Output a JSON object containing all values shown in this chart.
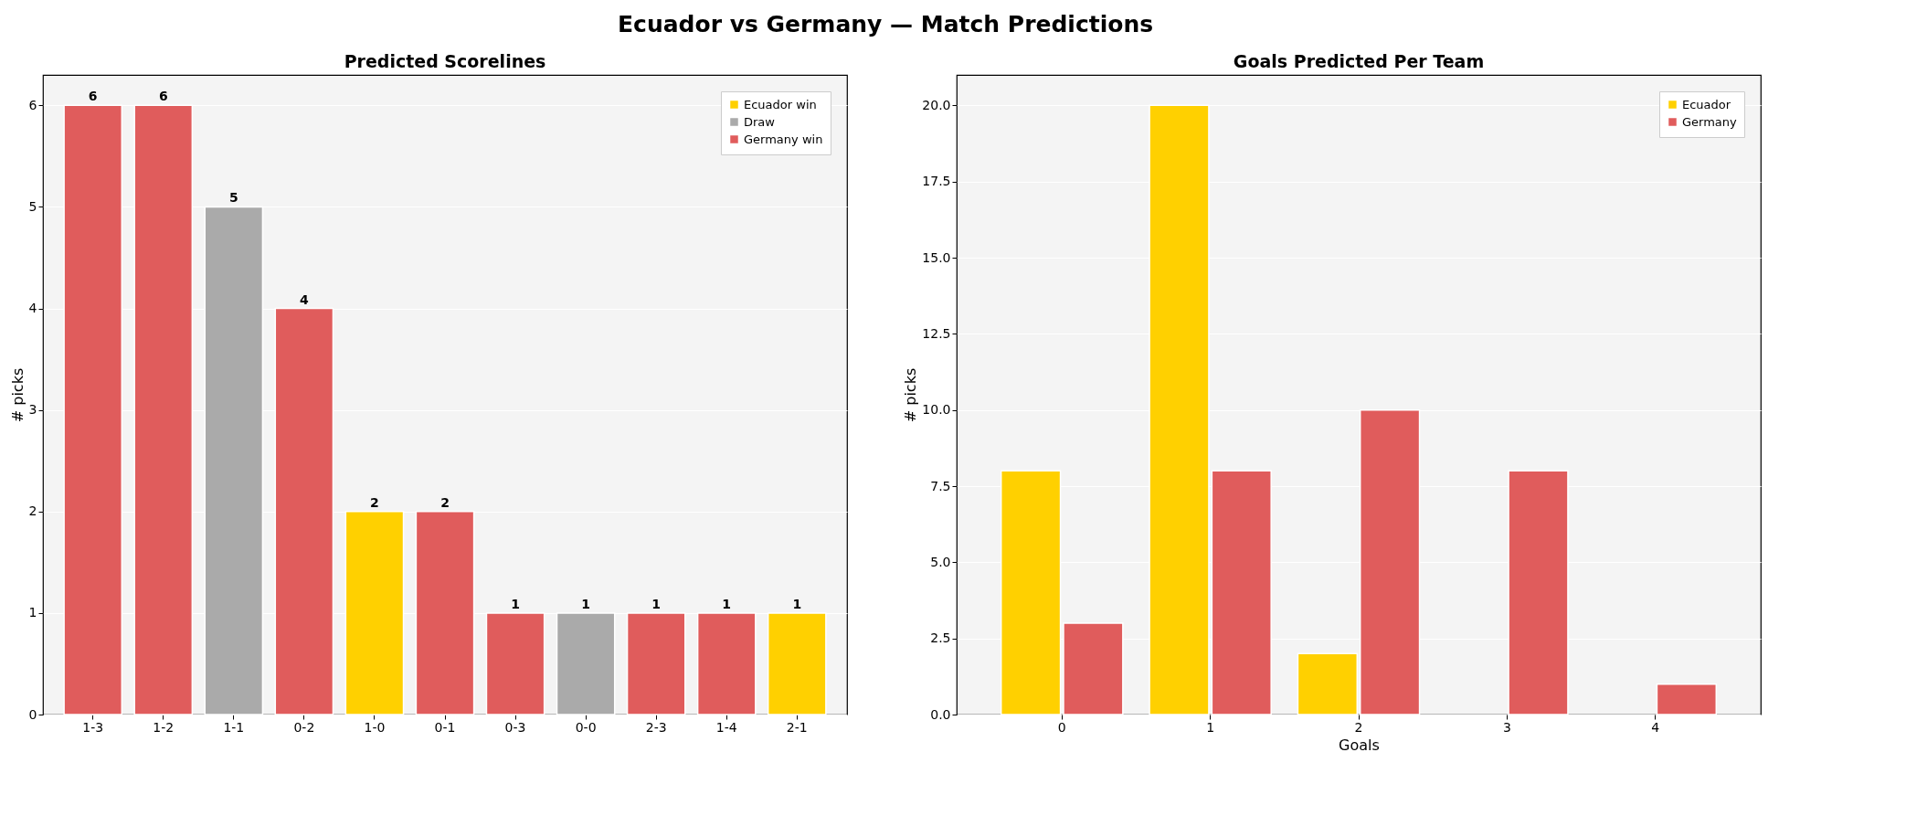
{
  "chart_data": [
    {
      "type": "bar",
      "title": "Predicted Scorelines",
      "annotations": [
        "Ecuador vs Germany  —  Match Predictions"
      ],
      "ylabel": "# picks",
      "categories": [
        "1-3",
        "1-2",
        "1-1",
        "0-2",
        "1-0",
        "0-1",
        "0-3",
        "0-0",
        "2-3",
        "1-4",
        "2-1"
      ],
      "stacked": true,
      "data_labels": true,
      "grid": "y",
      "legend": "top right",
      "ylim": [
        0,
        6.3
      ],
      "yticks": [
        0,
        1,
        2,
        3,
        4,
        5,
        6
      ],
      "series": [
        {
          "name": "Ecuador win",
          "color": "#ffd000",
          "values": [
            null,
            null,
            null,
            null,
            2,
            null,
            null,
            null,
            null,
            null,
            1
          ]
        },
        {
          "name": "Draw",
          "color": "#aaaaaa",
          "values": [
            null,
            null,
            5,
            null,
            null,
            null,
            null,
            1,
            null,
            null,
            null
          ]
        },
        {
          "name": "Germany win",
          "color": "#e05c5c",
          "values": [
            6,
            6,
            null,
            4,
            null,
            2,
            1,
            null,
            1,
            1,
            null
          ]
        }
      ]
    },
    {
      "type": "bar",
      "title": "Goals Predicted Per Team",
      "xlabel": "Goals",
      "ylabel": "# picks",
      "categories": [
        "0",
        "1",
        "2",
        "3",
        "4"
      ],
      "grid": "y",
      "legend": "top right",
      "ylim": [
        0,
        21
      ],
      "yticks": [
        {
          "value": 0,
          "label": "0.0"
        },
        {
          "value": 2.5,
          "label": "2.5"
        },
        {
          "value": 5,
          "label": "5.0"
        },
        {
          "value": 7.5,
          "label": "7.5"
        },
        {
          "value": 10,
          "label": "10.0"
        },
        {
          "value": 12.5,
          "label": "12.5"
        },
        {
          "value": 15,
          "label": "15.0"
        },
        {
          "value": 17.5,
          "label": "17.5"
        },
        {
          "value": 20,
          "label": "20.0"
        }
      ],
      "series": [
        {
          "name": "Ecuador",
          "color": "#ffd000",
          "values": [
            8,
            20,
            2,
            0,
            0
          ]
        },
        {
          "name": "Germany",
          "color": "#e05c5c",
          "values": [
            3,
            8,
            10,
            8,
            1
          ]
        }
      ]
    }
  ]
}
